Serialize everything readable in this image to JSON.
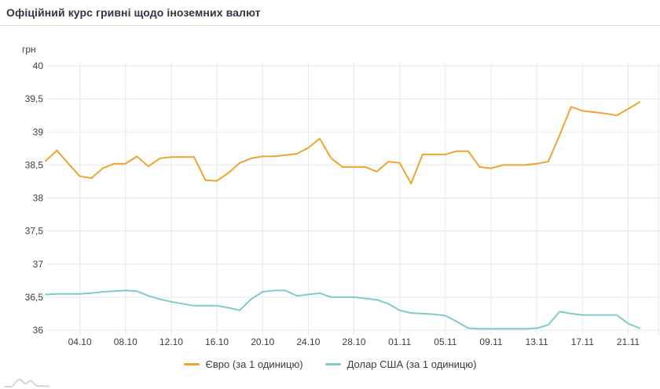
{
  "header": {
    "title": "Офіційний курс гривні щодо іноземних валют"
  },
  "colors": {
    "euro_line": "#f0a32f",
    "usd_line": "#7fcbc8",
    "grid": "#e8e8e8",
    "axis_text": "#3d3d3d",
    "title_text": "#2e3642",
    "divider": "#dcdcdc",
    "watermark": "#cccccc"
  },
  "icons": {
    "watermark": "area-chart-watermark-icon"
  },
  "chart_data": {
    "type": "line",
    "title": "Офіційний курс гривні щодо іноземних валют",
    "y_axis_unit": "грн",
    "ylim": [
      36,
      40
    ],
    "y_ticks": [
      40,
      39.5,
      39,
      38.5,
      38,
      37.5,
      37,
      36.5,
      36
    ],
    "y_tick_labels": [
      "40",
      "39,5",
      "39",
      "38,5",
      "38",
      "37,5",
      "37",
      "36,5",
      "36"
    ],
    "grid": true,
    "legend_position": "bottom",
    "x": [
      "01.10",
      "02.10",
      "03.10",
      "04.10",
      "05.10",
      "06.10",
      "07.10",
      "08.10",
      "09.10",
      "10.10",
      "11.10",
      "12.10",
      "13.10",
      "14.10",
      "15.10",
      "16.10",
      "17.10",
      "18.10",
      "19.10",
      "20.10",
      "21.10",
      "22.10",
      "23.10",
      "24.10",
      "25.10",
      "26.10",
      "27.10",
      "28.10",
      "29.10",
      "30.10",
      "31.10",
      "01.11",
      "02.11",
      "03.11",
      "04.11",
      "05.11",
      "06.11",
      "07.11",
      "08.11",
      "09.11",
      "10.11",
      "11.11",
      "12.11",
      "13.11",
      "14.11",
      "15.11",
      "16.11",
      "17.11",
      "18.11",
      "19.11",
      "20.11",
      "21.11",
      "22.11"
    ],
    "x_tick_labels": [
      "04.10",
      "08.10",
      "12.10",
      "16.10",
      "20.10",
      "24.10",
      "28.10",
      "01.11",
      "05.11",
      "09.11",
      "13.11",
      "17.11",
      "21.11"
    ],
    "series": [
      {
        "key": "euro",
        "name": "Євро (за 1 одиницю)",
        "color": "#f0a32f",
        "values": [
          38.56,
          38.72,
          38.52,
          38.33,
          38.3,
          38.45,
          38.52,
          38.52,
          38.63,
          38.48,
          38.6,
          38.62,
          38.62,
          38.62,
          38.27,
          38.26,
          38.38,
          38.53,
          38.6,
          38.63,
          38.63,
          38.65,
          38.67,
          38.76,
          38.9,
          38.6,
          38.47,
          38.47,
          38.47,
          38.4,
          38.55,
          38.53,
          38.22,
          38.66,
          38.66,
          38.66,
          38.71,
          38.71,
          38.47,
          38.45,
          38.5,
          38.5,
          38.5,
          38.52,
          38.55,
          38.95,
          39.38,
          39.32,
          39.3,
          39.28,
          39.25,
          39.35,
          39.45
        ]
      },
      {
        "key": "usd",
        "name": "Долар США (за 1 одиницю)",
        "color": "#7fcbc8",
        "values": [
          36.54,
          36.55,
          36.55,
          36.55,
          36.56,
          36.58,
          36.59,
          36.6,
          36.59,
          36.52,
          36.47,
          36.43,
          36.4,
          36.37,
          36.37,
          36.37,
          36.34,
          36.3,
          36.47,
          36.58,
          36.6,
          36.6,
          36.52,
          36.54,
          36.56,
          36.5,
          36.5,
          36.5,
          36.48,
          36.46,
          36.4,
          36.3,
          36.26,
          36.25,
          36.24,
          36.22,
          36.13,
          36.03,
          36.02,
          36.02,
          36.02,
          36.02,
          36.02,
          36.03,
          36.08,
          36.28,
          36.25,
          36.23,
          36.23,
          36.23,
          36.23,
          36.1,
          36.03
        ]
      }
    ]
  }
}
